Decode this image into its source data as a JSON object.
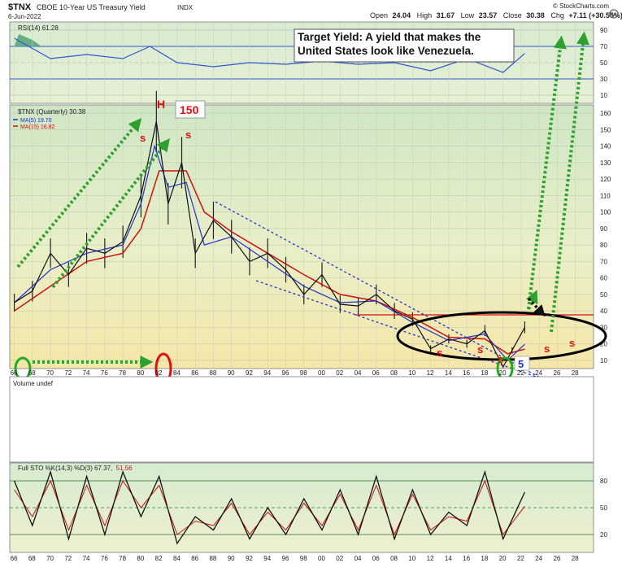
{
  "header": {
    "symbol": "$TNX",
    "name": "CBOE 10-Year US Treasury Yield",
    "exchange": "INDX",
    "date": "6-Jun-2022",
    "open_label": "Open",
    "open": "24.04",
    "high_label": "High",
    "high": "31.67",
    "low_label": "Low",
    "low": "23.57",
    "close_label": "Close",
    "close": "30.38",
    "chg_label": "Chg",
    "chg": "+7.11 (+30.55%)",
    "brand": "© StockCharts.com"
  },
  "colors": {
    "price": "#1a1a1a",
    "ma5": "#2233cc",
    "ma15": "#cc1111",
    "green_arrow": "#2ea02e",
    "channel": "#2233cc",
    "rsi_fill_top": "#5aa77c",
    "sto_k": "#111111",
    "sto_d": "#cc1111"
  },
  "rsi_panel": {
    "legend": "RSI(14) 61.28",
    "y_ticks": [
      "90",
      "70",
      "50",
      "30",
      "10"
    ]
  },
  "price_panel": {
    "legend_title": "$TNX (Quarterly) 30.38",
    "ma5_label": "MA(5) 19.70",
    "ma15_label": "MA(15) 16.82",
    "y_ticks": [
      "160",
      "150",
      "140",
      "130",
      "120",
      "110",
      "100",
      "90",
      "80",
      "70",
      "60",
      "50",
      "40",
      "30",
      "20",
      "10"
    ],
    "horizontal_line_level": 32
  },
  "volume_panel": {
    "legend": "Volume undef"
  },
  "sto_panel": {
    "legend_k": "Full STO %K(14,3) %D(3) 67.37,",
    "legend_d": "51.56",
    "y_ticks": [
      "80",
      "50",
      "20"
    ]
  },
  "x_ticks": [
    "66",
    "68",
    "70",
    "72",
    "74",
    "76",
    "78",
    "80",
    "82",
    "84",
    "86",
    "88",
    "90",
    "92",
    "94",
    "96",
    "98",
    "00",
    "02",
    "04",
    "06",
    "08",
    "10",
    "12",
    "14",
    "16",
    "18",
    "20",
    "22",
    "24",
    "26",
    "28"
  ],
  "annotations": {
    "callout": "Target Yield:  A yield that makes the United States look like Venezuela.",
    "peak_value": "150",
    "H_top": "H",
    "H_bottom": "H",
    "s_marks": [
      "s",
      "s",
      "s",
      "s",
      "s",
      "s",
      "s",
      "s"
    ],
    "wave_5": "5"
  },
  "chart_data": {
    "type": "line",
    "title": "$TNX CBOE 10-Year US Treasury Yield INDX",
    "ylim": [
      5,
      165
    ],
    "xlim": [
      1965.5,
      2030
    ],
    "y_axis_side": "right",
    "log_scale": false,
    "grid": true,
    "series": [
      {
        "name": "$TNX (Quarterly)",
        "x": [
          1966,
          1968,
          1970,
          1972,
          1974,
          1976,
          1978,
          1980,
          1981.7,
          1983,
          1984.5,
          1986,
          1988,
          1990,
          1992,
          1994,
          1996,
          1998,
          2000,
          2002,
          2004,
          2006,
          2008,
          2010,
          2012,
          2014,
          2016,
          2018,
          2020,
          2021,
          2022.4
        ],
        "values": [
          45,
          52,
          75,
          62,
          78,
          75,
          82,
          110,
          155,
          105,
          130,
          75,
          95,
          85,
          70,
          75,
          65,
          50,
          62,
          44,
          43,
          50,
          40,
          35,
          17,
          23,
          20,
          28,
          6,
          16,
          30
        ]
      },
      {
        "name": "MA(5)",
        "x": [
          1966,
          1970,
          1974,
          1978,
          1980,
          1981.5,
          1983,
          1985,
          1987,
          1990,
          1994,
          1998,
          2002,
          2006,
          2010,
          2014,
          2018,
          2020.5,
          2022.4
        ],
        "values": [
          45,
          65,
          75,
          80,
          105,
          140,
          115,
          118,
          80,
          85,
          70,
          55,
          45,
          46,
          33,
          22,
          26,
          10,
          19.7
        ]
      },
      {
        "name": "MA(15)",
        "x": [
          1966,
          1970,
          1974,
          1978,
          1980,
          1982,
          1985,
          1987,
          1990,
          1994,
          1998,
          2002,
          2006,
          2010,
          2014,
          2018,
          2020.5,
          2022.4
        ],
        "values": [
          40,
          55,
          70,
          75,
          90,
          125,
          125,
          100,
          88,
          75,
          62,
          50,
          46,
          36,
          24,
          23,
          14,
          16.8
        ]
      }
    ],
    "rsi": {
      "name": "RSI(14)",
      "x": [
        1966,
        1970,
        1974,
        1978,
        1981,
        1984,
        1988,
        1992,
        1996,
        2000,
        2004,
        2008,
        2012,
        2016,
        2020,
        2022.4
      ],
      "values": [
        80,
        55,
        60,
        55,
        70,
        50,
        45,
        50,
        48,
        52,
        48,
        50,
        40,
        55,
        38,
        61.28
      ]
    },
    "sto": {
      "name": "Full STO %K(14,3) %D(3)",
      "x": [
        1966,
        1968,
        1970,
        1972,
        1974,
        1976,
        1978,
        1980,
        1982,
        1984,
        1986,
        1988,
        1990,
        1992,
        1994,
        1996,
        1998,
        2000,
        2002,
        2004,
        2006,
        2008,
        2010,
        2012,
        2014,
        2016,
        2018,
        2020,
        2022.4
      ],
      "k": [
        80,
        30,
        90,
        15,
        85,
        20,
        90,
        40,
        85,
        10,
        40,
        25,
        60,
        15,
        50,
        20,
        60,
        25,
        70,
        20,
        85,
        15,
        70,
        20,
        45,
        30,
        90,
        15,
        67.37
      ],
      "d": [
        70,
        40,
        80,
        25,
        75,
        30,
        80,
        50,
        75,
        20,
        35,
        30,
        55,
        20,
        45,
        25,
        55,
        30,
        65,
        25,
        75,
        20,
        65,
        25,
        40,
        35,
        80,
        20,
        51.56
      ]
    }
  }
}
